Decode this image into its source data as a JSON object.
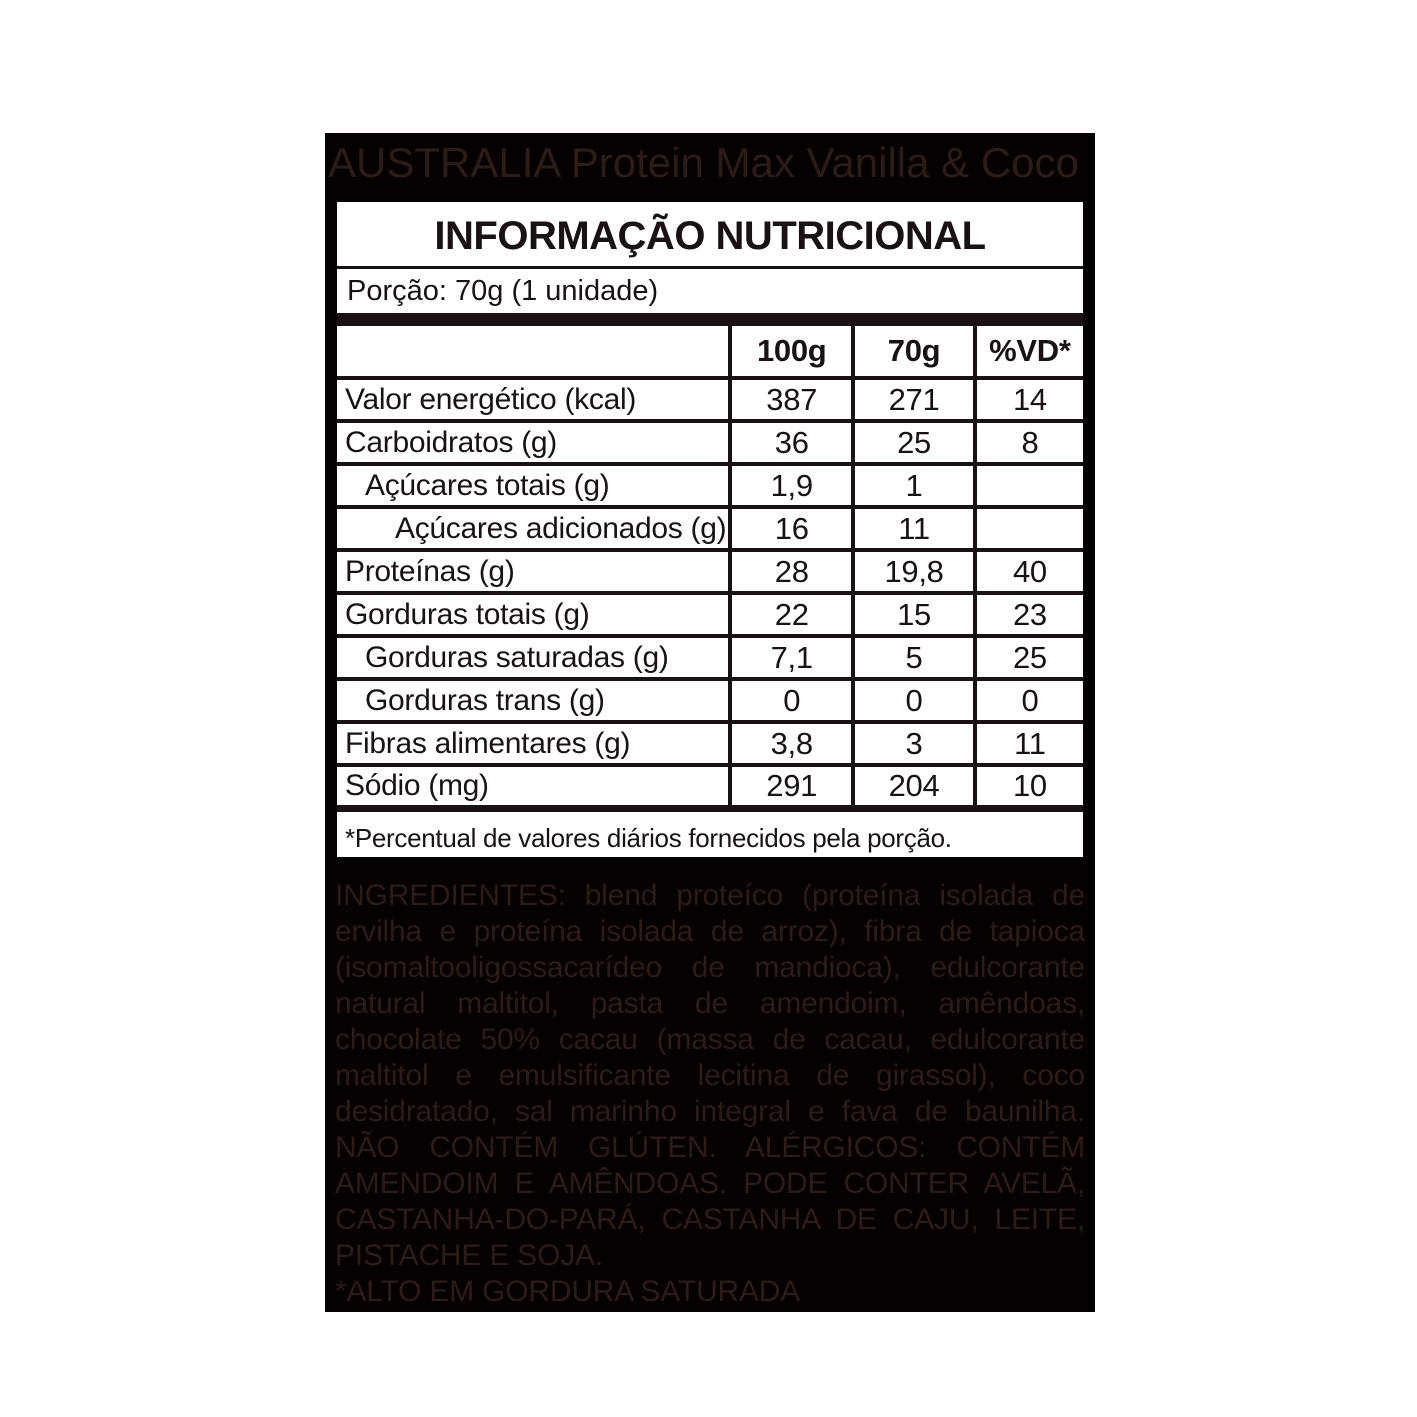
{
  "product": {
    "title": "AUSTRALIA Protein Max Vanilla & Coco"
  },
  "label": {
    "title": "INFORMAÇÃO NUTRICIONAL",
    "serving": "Porção: 70g (1 unidade)",
    "columns": {
      "label": "",
      "per100": "100g",
      "per70": "70g",
      "vd": "%VD*"
    },
    "rows": [
      {
        "name": "Valor energético (kcal)",
        "v100": "387",
        "v70": "271",
        "vd": "14"
      },
      {
        "name": "Carboidratos (g)",
        "v100": "36",
        "v70": "25",
        "vd": "8"
      },
      {
        "name": "Açúcares totais (g)",
        "v100": "1,9",
        "v70": "1",
        "vd": ""
      },
      {
        "name": "Açúcares adicionados (g)",
        "v100": "16",
        "v70": "11",
        "vd": ""
      },
      {
        "name": "Proteínas (g)",
        "v100": "28",
        "v70": "19,8",
        "vd": "40"
      },
      {
        "name": "Gorduras totais (g)",
        "v100": "22",
        "v70": "15",
        "vd": "23"
      },
      {
        "name": "Gorduras saturadas (g)",
        "v100": "7,1",
        "v70": "5",
        "vd": "25"
      },
      {
        "name": "Gorduras trans (g)",
        "v100": "0",
        "v70": "0",
        "vd": "0"
      },
      {
        "name": "Fibras alimentares (g)",
        "v100": "3,8",
        "v70": "3",
        "vd": "11"
      },
      {
        "name": "Sódio (mg)",
        "v100": "291",
        "v70": "204",
        "vd": "10"
      }
    ],
    "footnote": "*Percentual de valores diários fornecidos pela porção."
  },
  "ingredients": {
    "text": "INGREDIENTES: blend proteíco (proteína isolada de ervilha e proteína isolada de arroz), fibra de tapioca (isomaltooligossacarídeo de mandioca), edulcorante natural maltitol, pasta de amendoim, amêndoas, chocolate 50% cacau (massa de cacau, edulcorante maltitol e emulsificante lecitina de girassol), coco desidratado, sal marinho integral e fava de baunilha. NÃO CONTÉM GLÚTEN. ALÉRGICOS: CONTÉM AMENDOIM E AMÊNDOAS. PODE CONTER AVELÃ, CASTANHA-DO-PARÁ, CASTANHA DE CAJU, LEITE, PISTACHE E SOJA.",
    "warning": "*ALTO EM GORDURA SATURADA"
  },
  "colors": {
    "background": "#ffffff",
    "panel_black": "#040100",
    "faded_text": "#2d1c13",
    "table_ink": "#191112"
  }
}
